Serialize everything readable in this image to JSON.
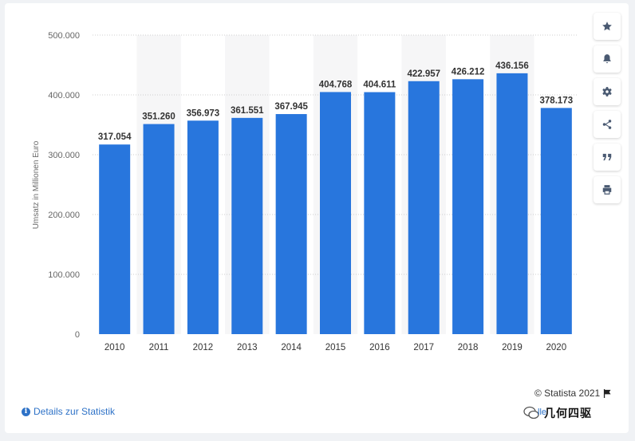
{
  "chart_data": {
    "type": "bar",
    "categories": [
      "2010",
      "2011",
      "2012",
      "2013",
      "2014",
      "2015",
      "2016",
      "2017",
      "2018",
      "2019",
      "2020"
    ],
    "values": [
      317054,
      351260,
      356973,
      361551,
      367945,
      404768,
      404611,
      422957,
      426212,
      436156,
      378173
    ],
    "value_labels": [
      "317.054",
      "351.260",
      "356.973",
      "361.551",
      "367.945",
      "404.768",
      "404.611",
      "422.957",
      "426.212",
      "436.156",
      "378.173"
    ],
    "ylabel": "Umsatz in Millionen Euro",
    "ylim": [
      0,
      500000
    ],
    "yticks": [
      0,
      100000,
      200000,
      300000,
      400000,
      500000
    ],
    "ytick_labels": [
      "0",
      "100.000",
      "200.000",
      "300.000",
      "400.000",
      "500.000"
    ],
    "grid": true,
    "bar_color": "#2876dd"
  },
  "footer": {
    "details_link": "Details zur Statistik",
    "credit": "© Statista 2021"
  },
  "watermark": {
    "text": "几何四驱",
    "partial_link": "lle"
  },
  "toolbar": {
    "icons": [
      "star-icon",
      "bell-icon",
      "gear-icon",
      "share-icon",
      "quote-icon",
      "print-icon"
    ]
  }
}
